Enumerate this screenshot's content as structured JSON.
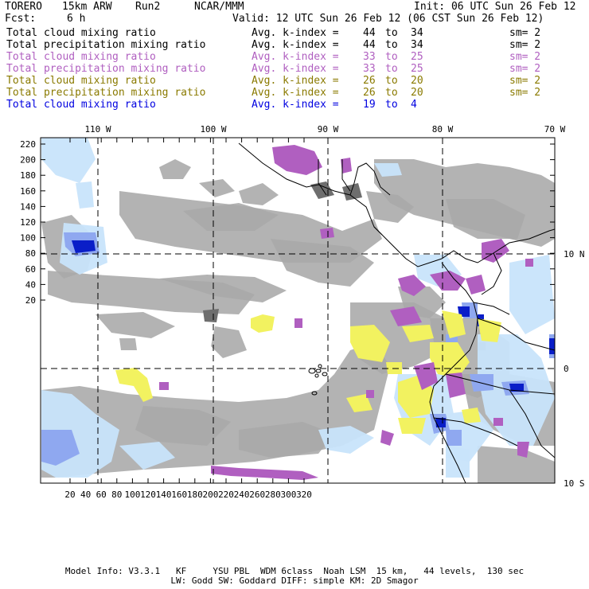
{
  "header": {
    "model": "TORERO",
    "resolution": "15km ARW",
    "run": "Run2",
    "org": "NCAR/MMM",
    "init": "Init: 06 UTC Sun 26 Feb 12",
    "fcst_label": "Fcst:",
    "fcst_value": "6 h",
    "valid": "Valid: 12 UTC Sun 26 Feb 12 (06 CST Sun 26 Feb 12)"
  },
  "legend": [
    {
      "field": "Total cloud mixing ratio",
      "avg": "Avg. k-index =",
      "from": "44",
      "to_label": "to",
      "to": "34",
      "sm": "sm= 2",
      "color": "#000000"
    },
    {
      "field": "Total precipitation mixing ratio",
      "avg": "Avg. k-index =",
      "from": "44",
      "to_label": "to",
      "to": "34",
      "sm": "sm= 2",
      "color": "#000000"
    },
    {
      "field": "Total cloud mixing ratio",
      "avg": "Avg. k-index =",
      "from": "33",
      "to_label": "to",
      "to": "25",
      "sm": "sm= 2",
      "color": "#b05fc0"
    },
    {
      "field": "Total precipitation mixing ratio",
      "avg": "Avg. k-index =",
      "from": "33",
      "to_label": "to",
      "to": "25",
      "sm": "sm= 2",
      "color": "#b05fc0"
    },
    {
      "field": "Total cloud mixing ratio",
      "avg": "Avg. k-index =",
      "from": "26",
      "to_label": "to",
      "to": "20",
      "sm": "sm= 2",
      "color": "#8a7a00"
    },
    {
      "field": "Total precipitation mixing ratio",
      "avg": "Avg. k-index =",
      "from": "26",
      "to_label": "to",
      "to": "20",
      "sm": "sm= 2",
      "color": "#8a7a00"
    },
    {
      "field": "Total cloud mixing ratio",
      "avg": "Avg. k-index =",
      "from": "19",
      "to_label": "to",
      "to": "4",
      "sm": "",
      "color": "#0000e0"
    }
  ],
  "axes": {
    "top_labels": [
      "110 W",
      "100 W",
      "90 W",
      "80 W",
      "70 W"
    ],
    "right_labels": [
      "10 N",
      "0",
      "10 S"
    ],
    "left_ticks": [
      "220",
      "200",
      "180",
      "160",
      "140",
      "120",
      "100",
      "80",
      "60",
      "40",
      "20"
    ],
    "bottom_ticks": [
      "20",
      "40",
      "60",
      "80",
      "100",
      "120",
      "140",
      "160",
      "180",
      "200",
      "220",
      "240",
      "260",
      "280",
      "300",
      "320"
    ]
  },
  "colors": {
    "gray": "#a9a9a9",
    "dark_gray": "#6e6e6e",
    "purple": "#b05fc0",
    "yellow": "#f2f260",
    "light_blue": "#c8e4fb",
    "mid_blue": "#8fa8f0",
    "dark_blue": "#0a1ec8"
  },
  "footer": {
    "line1": "Model Info: V3.3.1   KF     YSU PBL  WDM 6class  Noah LSM  15 km,   44 levels,  130 sec",
    "line2": "LW: Godd SW: Goddard DIFF: simple KM: 2D Smagor"
  }
}
